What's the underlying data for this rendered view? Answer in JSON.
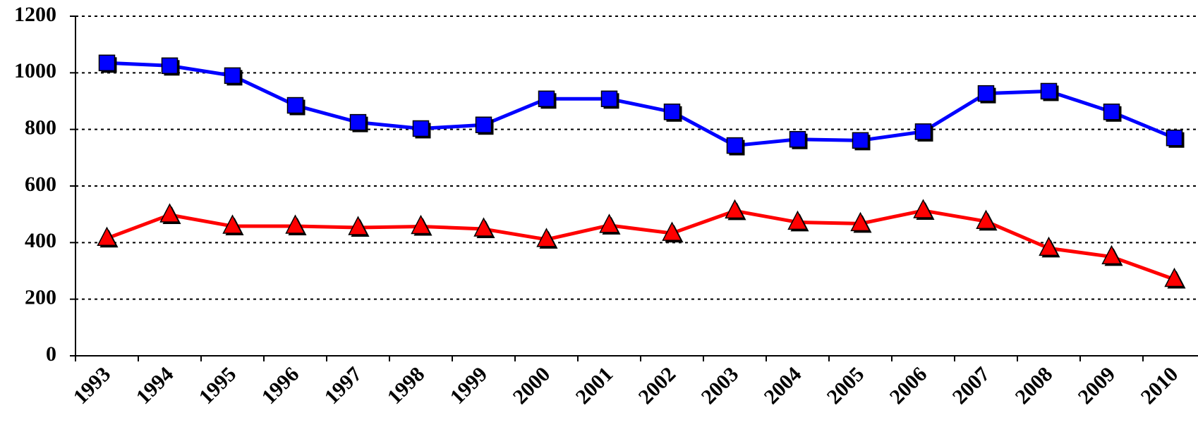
{
  "chart_data": {
    "type": "line",
    "categories": [
      "1993",
      "1994",
      "1995",
      "1996",
      "1997",
      "1998",
      "1999",
      "2000",
      "2001",
      "2002",
      "2003",
      "2004",
      "2005",
      "2006",
      "2007",
      "2008",
      "2009",
      "2010"
    ],
    "ylim": [
      0,
      1200
    ],
    "yticks": [
      "0",
      "200",
      "400",
      "600",
      "800",
      "1000",
      "1200"
    ],
    "grid": true,
    "legend": "none",
    "series": [
      {
        "marker": "square",
        "color": "#0000ff",
        "values": [
          1035,
          1025,
          990,
          885,
          825,
          803,
          816,
          908,
          908,
          862,
          743,
          765,
          761,
          792,
          927,
          935,
          862,
          770
        ]
      },
      {
        "marker": "triangle",
        "color": "#ff0000",
        "values": [
          415,
          498,
          458,
          458,
          453,
          457,
          448,
          411,
          461,
          433,
          512,
          472,
          467,
          513,
          475,
          380,
          350,
          270
        ]
      }
    ]
  }
}
